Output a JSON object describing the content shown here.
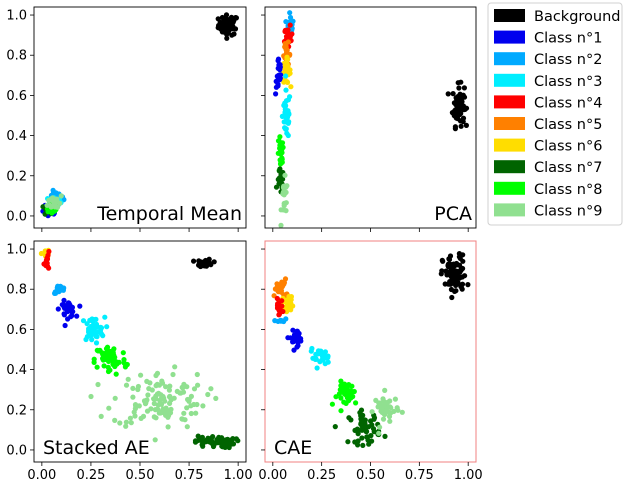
{
  "chart_data": {
    "type": "scatter",
    "layout": "2x2 grid, shared x and y axes",
    "xlim": [
      -0.04,
      1.04
    ],
    "ylim": [
      -0.06,
      1.04
    ],
    "xticks": [
      "0.00",
      "0.25",
      "0.50",
      "0.75",
      "1.00"
    ],
    "yticks": [
      "0.0",
      "0.2",
      "0.4",
      "0.6",
      "0.8",
      "1.0"
    ],
    "legend_position": "outside right, top",
    "legend": [
      {
        "name": "Background",
        "color": "#000000"
      },
      {
        "name": "Class n°1",
        "color": "#0000ee"
      },
      {
        "name": "Class n°2",
        "color": "#00aaff"
      },
      {
        "name": "Class n°3",
        "color": "#00eeff"
      },
      {
        "name": "Class n°4",
        "color": "#ff0000"
      },
      {
        "name": "Class n°5",
        "color": "#ff8000"
      },
      {
        "name": "Class n°6",
        "color": "#ffdd00"
      },
      {
        "name": "Class n°7",
        "color": "#006400"
      },
      {
        "name": "Class n°8",
        "color": "#00ff00"
      },
      {
        "name": "Class n°9",
        "color": "#90e090"
      }
    ],
    "panels": [
      {
        "label": "Temporal Mean",
        "highlight": false,
        "clusters": [
          {
            "class": 0,
            "cx": 0.95,
            "cy": 0.95,
            "sx": 0.025,
            "sy": 0.025,
            "n": 60
          },
          {
            "class": 2,
            "cx": 0.07,
            "cy": 0.09,
            "sx": 0.02,
            "sy": 0.015,
            "n": 20
          },
          {
            "class": 1,
            "cx": 0.04,
            "cy": 0.02,
            "sx": 0.02,
            "sy": 0.015,
            "n": 20
          },
          {
            "class": 3,
            "cx": 0.06,
            "cy": 0.07,
            "sx": 0.02,
            "sy": 0.015,
            "n": 15
          },
          {
            "class": 7,
            "cx": 0.04,
            "cy": 0.03,
            "sx": 0.015,
            "sy": 0.015,
            "n": 15
          },
          {
            "class": 8,
            "cx": 0.05,
            "cy": 0.04,
            "sx": 0.02,
            "sy": 0.015,
            "n": 20
          },
          {
            "class": 9,
            "cx": 0.07,
            "cy": 0.07,
            "sx": 0.02,
            "sy": 0.02,
            "n": 20
          }
        ]
      },
      {
        "label": "PCA",
        "highlight": false,
        "clusters": [
          {
            "class": 0,
            "cx": 0.95,
            "cy": 0.55,
            "sx": 0.015,
            "sy": 0.05,
            "n": 70
          },
          {
            "class": 2,
            "cx": 0.09,
            "cy": 0.96,
            "sx": 0.008,
            "sy": 0.03,
            "n": 15
          },
          {
            "class": 4,
            "cx": 0.08,
            "cy": 0.88,
            "sx": 0.01,
            "sy": 0.03,
            "n": 25
          },
          {
            "class": 5,
            "cx": 0.07,
            "cy": 0.8,
            "sx": 0.01,
            "sy": 0.03,
            "n": 20
          },
          {
            "class": 6,
            "cx": 0.07,
            "cy": 0.72,
            "sx": 0.01,
            "sy": 0.03,
            "n": 25
          },
          {
            "class": 1,
            "cx": 0.03,
            "cy": 0.7,
            "sx": 0.008,
            "sy": 0.05,
            "n": 20
          },
          {
            "class": 3,
            "cx": 0.07,
            "cy": 0.5,
            "sx": 0.01,
            "sy": 0.06,
            "n": 40
          },
          {
            "class": 8,
            "cx": 0.04,
            "cy": 0.3,
            "sx": 0.008,
            "sy": 0.05,
            "n": 25
          },
          {
            "class": 7,
            "cx": 0.04,
            "cy": 0.17,
            "sx": 0.008,
            "sy": 0.03,
            "n": 15
          },
          {
            "class": 9,
            "cx": 0.06,
            "cy": 0.08,
            "sx": 0.008,
            "sy": 0.05,
            "n": 20
          }
        ]
      },
      {
        "label": "Stacked AE",
        "highlight": false,
        "clusters": [
          {
            "class": 0,
            "cx": 0.83,
            "cy": 0.93,
            "sx": 0.02,
            "sy": 0.01,
            "n": 30
          },
          {
            "class": 6,
            "cx": 0.02,
            "cy": 0.98,
            "sx": 0.01,
            "sy": 0.01,
            "n": 10
          },
          {
            "class": 4,
            "cx": 0.03,
            "cy": 0.94,
            "sx": 0.01,
            "sy": 0.02,
            "n": 12
          },
          {
            "class": 2,
            "cx": 0.09,
            "cy": 0.8,
            "sx": 0.015,
            "sy": 0.01,
            "n": 20
          },
          {
            "class": 1,
            "cx": 0.13,
            "cy": 0.7,
            "sx": 0.02,
            "sy": 0.02,
            "n": 30
          },
          {
            "class": 3,
            "cx": 0.26,
            "cy": 0.6,
            "sx": 0.03,
            "sy": 0.03,
            "n": 40
          },
          {
            "class": 8,
            "cx": 0.35,
            "cy": 0.45,
            "sx": 0.04,
            "sy": 0.04,
            "n": 60
          },
          {
            "class": 9,
            "cx": 0.6,
            "cy": 0.25,
            "sx": 0.12,
            "sy": 0.07,
            "n": 120
          },
          {
            "class": 7,
            "cx": 0.88,
            "cy": 0.04,
            "sx": 0.05,
            "sy": 0.015,
            "n": 60
          }
        ]
      },
      {
        "label": "CAE",
        "highlight": true,
        "clusters": [
          {
            "class": 0,
            "cx": 0.93,
            "cy": 0.87,
            "sx": 0.03,
            "sy": 0.05,
            "n": 90
          },
          {
            "class": 5,
            "cx": 0.04,
            "cy": 0.8,
            "sx": 0.015,
            "sy": 0.025,
            "n": 25
          },
          {
            "class": 6,
            "cx": 0.08,
            "cy": 0.73,
            "sx": 0.015,
            "sy": 0.02,
            "n": 20
          },
          {
            "class": 4,
            "cx": 0.03,
            "cy": 0.71,
            "sx": 0.01,
            "sy": 0.02,
            "n": 15
          },
          {
            "class": 2,
            "cx": 0.04,
            "cy": 0.64,
            "sx": 0.01,
            "sy": 0.01,
            "n": 8
          },
          {
            "class": 1,
            "cx": 0.12,
            "cy": 0.56,
            "sx": 0.025,
            "sy": 0.02,
            "n": 25
          },
          {
            "class": 3,
            "cx": 0.24,
            "cy": 0.46,
            "sx": 0.025,
            "sy": 0.02,
            "n": 25
          },
          {
            "class": 8,
            "cx": 0.39,
            "cy": 0.28,
            "sx": 0.03,
            "sy": 0.03,
            "n": 40
          },
          {
            "class": 7,
            "cx": 0.47,
            "cy": 0.11,
            "sx": 0.04,
            "sy": 0.04,
            "n": 50
          },
          {
            "class": 9,
            "cx": 0.58,
            "cy": 0.2,
            "sx": 0.03,
            "sy": 0.04,
            "n": 40
          }
        ]
      }
    ]
  }
}
